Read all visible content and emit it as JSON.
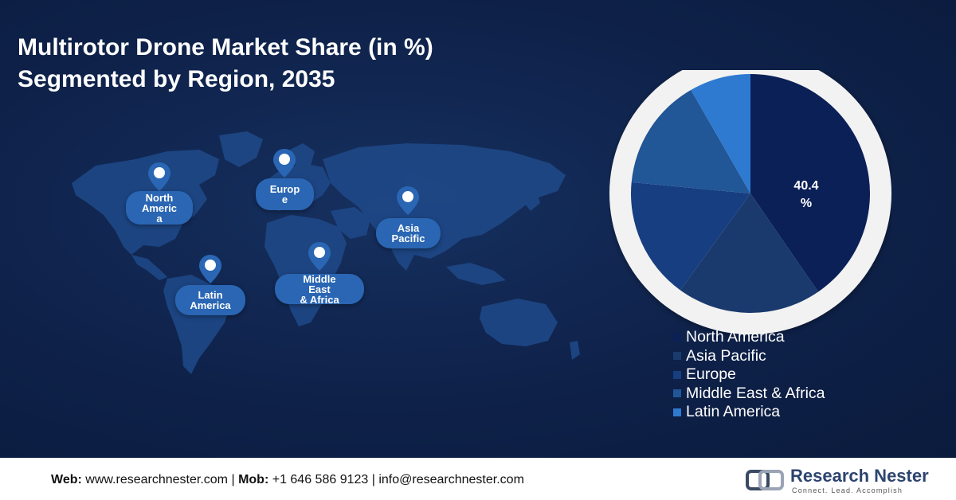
{
  "title_line1": "Multirotor Drone Market Share (in %)",
  "title_line2": "Segmented by Region, 2035",
  "map_labels": [
    {
      "text": "North\nAmeric\na"
    },
    {
      "text": "Europ\ne"
    },
    {
      "text": "Asia\nPacific"
    },
    {
      "text": "Latin\nAmerica"
    },
    {
      "text": "Middle\nEast\n& Africa"
    }
  ],
  "pie_value_label": "40.4\n%",
  "chart_data": {
    "type": "pie",
    "title": "Multirotor Drone Market Share (in %) Segmented by Region, 2035",
    "categories": [
      "North America",
      "Asia Pacific",
      "Europe",
      "Middle East & Africa",
      "Latin America"
    ],
    "values": [
      40.4,
      19.6,
      16.5,
      15.2,
      8.3
    ],
    "colors": [
      "#0b2057",
      "#1a3a6e",
      "#173e80",
      "#215697",
      "#2e7ad0"
    ],
    "data_labels": [
      "40.4 %",
      "",
      "",
      "",
      ""
    ],
    "legend_placement": "bottom-right"
  },
  "footer": {
    "web_label": "Web:",
    "web_value": "www.researchnester.com",
    "mob_label": "Mob:",
    "mob_value": "+1 646 586 9123",
    "email": "info@researchnester.com",
    "sep": "|"
  },
  "logo": {
    "name": "Research Nester",
    "tagline": "Connect. Lead. Accomplish"
  },
  "colors": {
    "background": "#0e2149",
    "pill": "#2a66b3",
    "map_land": "#1f4a8a"
  }
}
